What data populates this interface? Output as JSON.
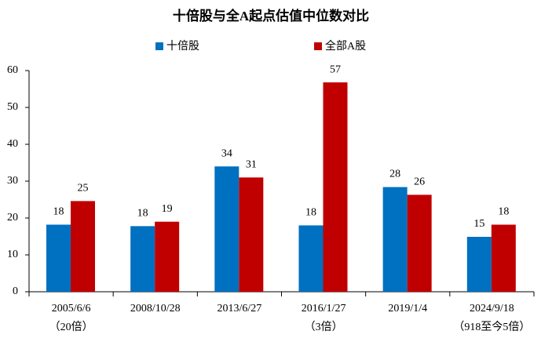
{
  "chart_data": {
    "type": "bar",
    "title": "十倍股与全A起点估值中位数对比",
    "categories": [
      "2005/6/6",
      "2008/10/28",
      "2013/6/27",
      "2016/1/27",
      "2019/1/4",
      "2024/9/18"
    ],
    "category_notes": [
      "（20倍）",
      null,
      null,
      "（3倍）",
      null,
      "（918至今5倍）"
    ],
    "series": [
      {
        "name": "十倍股",
        "color": "#0070c0",
        "values": [
          18.2,
          17.8,
          34,
          18,
          28.4,
          14.9
        ],
        "value_labels": [
          "18",
          "18",
          "34",
          "18",
          "28",
          "15"
        ]
      },
      {
        "name": "全部A股",
        "color": "#c00000",
        "values": [
          24.6,
          19,
          31,
          56.8,
          26.3,
          18.2
        ],
        "value_labels": [
          "25",
          "19",
          "31",
          "57",
          "26",
          "18"
        ]
      }
    ],
    "ylim": [
      0,
      60
    ],
    "yticks": [
      0,
      10,
      20,
      30,
      40,
      50,
      60
    ],
    "grid": false,
    "legend": "top"
  }
}
